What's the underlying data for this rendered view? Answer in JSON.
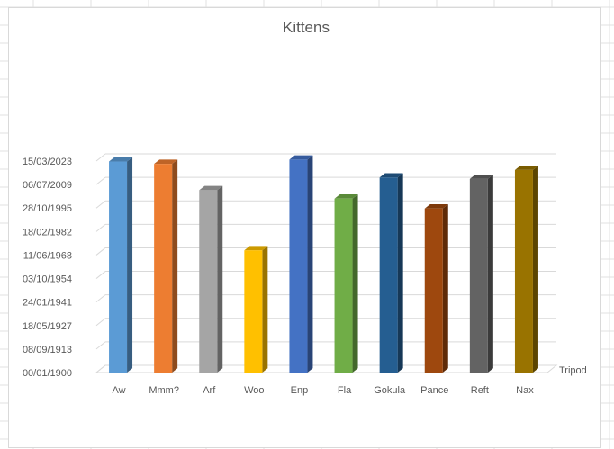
{
  "chart_data": {
    "type": "bar",
    "title": "Kittens",
    "series_name": "Tripod",
    "categories": [
      "Aw",
      "Mmm?",
      "Arf",
      "Woo",
      "Enp",
      "Fla",
      "Gokula",
      "Pance",
      "Reft",
      "Nax"
    ],
    "values": [
      44900,
      44400,
      38800,
      26000,
      45300,
      37000,
      41500,
      34900,
      41200,
      43100
    ],
    "value_format": "date dd/mm/yyyy",
    "y_tick_labels": [
      "00/01/1900",
      "08/09/1913",
      "18/05/1927",
      "24/01/1941",
      "03/10/1954",
      "11/06/1968",
      "18/02/1982",
      "28/10/1995",
      "06/07/2009",
      "15/03/2023"
    ],
    "ylim": [
      0,
      45000
    ],
    "grid": true,
    "legend": "none",
    "colors": [
      "#5B9BD5",
      "#ED7D31",
      "#A5A5A5",
      "#FFC000",
      "#4472C4",
      "#70AD47",
      "#255E91",
      "#9E480E",
      "#636363",
      "#997300"
    ]
  }
}
